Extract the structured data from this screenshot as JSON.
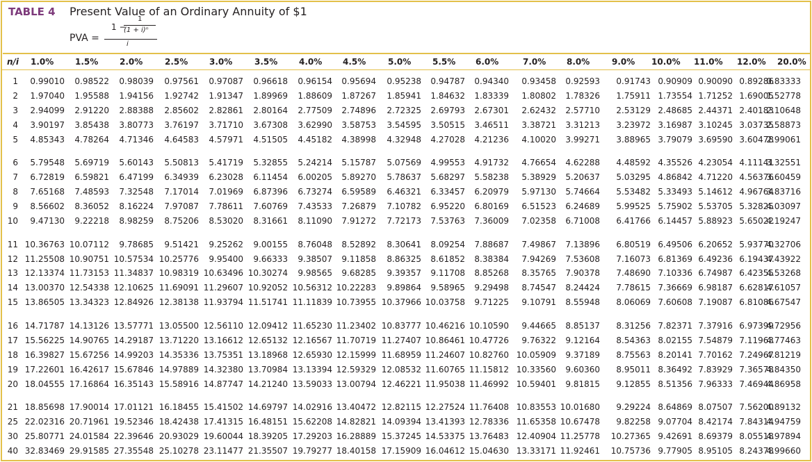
{
  "header": {
    "label": "TABLE 4",
    "title": "Present Value of an Ordinary Annuity of $1",
    "formula": {
      "lhs": "PVA =",
      "prefix": "1 −",
      "inner_numerator": "1",
      "inner_denominator": "(1 + i)ⁿ",
      "denominator": "i"
    }
  },
  "table": {
    "columns": [
      "n/i",
      "1.0%",
      "1.5%",
      "2.0%",
      "2.5%",
      "3.0%",
      "3.5%",
      "4.0%",
      "4.5%",
      "5.0%",
      "5.5%",
      "6.0%",
      "7.0%",
      "8.0%",
      "9.0%",
      "10.0%",
      "11.0%",
      "12.0%",
      "20.0%"
    ],
    "rows": [
      [
        "1",
        "0.99010",
        "0.98522",
        "0.98039",
        "0.97561",
        "0.97087",
        "0.96618",
        "0.96154",
        "0.95694",
        "0.95238",
        "0.94787",
        "0.94340",
        "0.93458",
        "0.92593",
        "0.91743",
        "0.90909",
        "0.90090",
        "0.89286",
        "0.83333"
      ],
      [
        "2",
        "1.97040",
        "1.95588",
        "1.94156",
        "1.92742",
        "1.91347",
        "1.89969",
        "1.88609",
        "1.87267",
        "1.85941",
        "1.84632",
        "1.83339",
        "1.80802",
        "1.78326",
        "1.75911",
        "1.73554",
        "1.71252",
        "1.69005",
        "1.52778"
      ],
      [
        "3",
        "2.94099",
        "2.91220",
        "2.88388",
        "2.85602",
        "2.82861",
        "2.80164",
        "2.77509",
        "2.74896",
        "2.72325",
        "2.69793",
        "2.67301",
        "2.62432",
        "2.57710",
        "2.53129",
        "2.48685",
        "2.44371",
        "2.40183",
        "2.10648"
      ],
      [
        "4",
        "3.90197",
        "3.85438",
        "3.80773",
        "3.76197",
        "3.71710",
        "3.67308",
        "3.62990",
        "3.58753",
        "3.54595",
        "3.50515",
        "3.46511",
        "3.38721",
        "3.31213",
        "3.23972",
        "3.16987",
        "3.10245",
        "3.03735",
        "2.58873"
      ],
      [
        "5",
        "4.85343",
        "4.78264",
        "4.71346",
        "4.64583",
        "4.57971",
        "4.51505",
        "4.45182",
        "4.38998",
        "4.32948",
        "4.27028",
        "4.21236",
        "4.10020",
        "3.99271",
        "3.88965",
        "3.79079",
        "3.69590",
        "3.60478",
        "2.99061"
      ],
      [
        "6",
        "5.79548",
        "5.69719",
        "5.60143",
        "5.50813",
        "5.41719",
        "5.32855",
        "5.24214",
        "5.15787",
        "5.07569",
        "4.99553",
        "4.91732",
        "4.76654",
        "4.62288",
        "4.48592",
        "4.35526",
        "4.23054",
        "4.11141",
        "3.32551"
      ],
      [
        "7",
        "6.72819",
        "6.59821",
        "6.47199",
        "6.34939",
        "6.23028",
        "6.11454",
        "6.00205",
        "5.89270",
        "5.78637",
        "5.68297",
        "5.58238",
        "5.38929",
        "5.20637",
        "5.03295",
        "4.86842",
        "4.71220",
        "4.56376",
        "3.60459"
      ],
      [
        "8",
        "7.65168",
        "7.48593",
        "7.32548",
        "7.17014",
        "7.01969",
        "6.87396",
        "6.73274",
        "6.59589",
        "6.46321",
        "6.33457",
        "6.20979",
        "5.97130",
        "5.74664",
        "5.53482",
        "5.33493",
        "5.14612",
        "4.96764",
        "3.83716"
      ],
      [
        "9",
        "8.56602",
        "8.36052",
        "8.16224",
        "7.97087",
        "7.78611",
        "7.60769",
        "7.43533",
        "7.26879",
        "7.10782",
        "6.95220",
        "6.80169",
        "6.51523",
        "6.24689",
        "5.99525",
        "5.75902",
        "5.53705",
        "5.32825",
        "4.03097"
      ],
      [
        "10",
        "9.47130",
        "9.22218",
        "8.98259",
        "8.75206",
        "8.53020",
        "8.31661",
        "8.11090",
        "7.91272",
        "7.72173",
        "7.53763",
        "7.36009",
        "7.02358",
        "6.71008",
        "6.41766",
        "6.14457",
        "5.88923",
        "5.65022",
        "4.19247"
      ],
      [
        "11",
        "10.36763",
        "10.07112",
        "9.78685",
        "9.51421",
        "9.25262",
        "9.00155",
        "8.76048",
        "8.52892",
        "8.30641",
        "8.09254",
        "7.88687",
        "7.49867",
        "7.13896",
        "6.80519",
        "6.49506",
        "6.20652",
        "5.93770",
        "4.32706"
      ],
      [
        "12",
        "11.25508",
        "10.90751",
        "10.57534",
        "10.25776",
        "9.95400",
        "9.66333",
        "9.38507",
        "9.11858",
        "8.86325",
        "8.61852",
        "8.38384",
        "7.94269",
        "7.53608",
        "7.16073",
        "6.81369",
        "6.49236",
        "6.19437",
        "4.43922"
      ],
      [
        "13",
        "12.13374",
        "11.73153",
        "11.34837",
        "10.98319",
        "10.63496",
        "10.30274",
        "9.98565",
        "9.68285",
        "9.39357",
        "9.11708",
        "8.85268",
        "8.35765",
        "7.90378",
        "7.48690",
        "7.10336",
        "6.74987",
        "6.42355",
        "4.53268"
      ],
      [
        "14",
        "13.00370",
        "12.54338",
        "12.10625",
        "11.69091",
        "11.29607",
        "10.92052",
        "10.56312",
        "10.22283",
        "9.89864",
        "9.58965",
        "9.29498",
        "8.74547",
        "8.24424",
        "7.78615",
        "7.36669",
        "6.98187",
        "6.62817",
        "4.61057"
      ],
      [
        "15",
        "13.86505",
        "13.34323",
        "12.84926",
        "12.38138",
        "11.93794",
        "11.51741",
        "11.11839",
        "10.73955",
        "10.37966",
        "10.03758",
        "9.71225",
        "9.10791",
        "8.55948",
        "8.06069",
        "7.60608",
        "7.19087",
        "6.81086",
        "4.67547"
      ],
      [
        "16",
        "14.71787",
        "14.13126",
        "13.57771",
        "13.05500",
        "12.56110",
        "12.09412",
        "11.65230",
        "11.23402",
        "10.83777",
        "10.46216",
        "10.10590",
        "9.44665",
        "8.85137",
        "8.31256",
        "7.82371",
        "7.37916",
        "6.97399",
        "4.72956"
      ],
      [
        "17",
        "15.56225",
        "14.90765",
        "14.29187",
        "13.71220",
        "13.16612",
        "12.65132",
        "12.16567",
        "11.70719",
        "11.27407",
        "10.86461",
        "10.47726",
        "9.76322",
        "9.12164",
        "8.54363",
        "8.02155",
        "7.54879",
        "7.11963",
        "4.77463"
      ],
      [
        "18",
        "16.39827",
        "15.67256",
        "14.99203",
        "14.35336",
        "13.75351",
        "13.18968",
        "12.65930",
        "12.15999",
        "11.68959",
        "11.24607",
        "10.82760",
        "10.05909",
        "9.37189",
        "8.75563",
        "8.20141",
        "7.70162",
        "7.24967",
        "4.81219"
      ],
      [
        "19",
        "17.22601",
        "16.42617",
        "15.67846",
        "14.97889",
        "14.32380",
        "13.70984",
        "13.13394",
        "12.59329",
        "12.08532",
        "11.60765",
        "11.15812",
        "10.33560",
        "9.60360",
        "8.95011",
        "8.36492",
        "7.83929",
        "7.36578",
        "4.84350"
      ],
      [
        "20",
        "18.04555",
        "17.16864",
        "16.35143",
        "15.58916",
        "14.87747",
        "14.21240",
        "13.59033",
        "13.00794",
        "12.46221",
        "11.95038",
        "11.46992",
        "10.59401",
        "9.81815",
        "9.12855",
        "8.51356",
        "7.96333",
        "7.46944",
        "4.86958"
      ],
      [
        "21",
        "18.85698",
        "17.90014",
        "17.01121",
        "16.18455",
        "15.41502",
        "14.69797",
        "14.02916",
        "13.40472",
        "12.82115",
        "12.27524",
        "11.76408",
        "10.83553",
        "10.01680",
        "9.29224",
        "8.64869",
        "8.07507",
        "7.56200",
        "4.89132"
      ],
      [
        "25",
        "22.02316",
        "20.71961",
        "19.52346",
        "18.42438",
        "17.41315",
        "16.48151",
        "15.62208",
        "14.82821",
        "14.09394",
        "13.41393",
        "12.78336",
        "11.65358",
        "10.67478",
        "9.82258",
        "9.07704",
        "8.42174",
        "7.84314",
        "4.94759"
      ],
      [
        "30",
        "25.80771",
        "24.01584",
        "22.39646",
        "20.93029",
        "19.60044",
        "18.39205",
        "17.29203",
        "16.28889",
        "15.37245",
        "14.53375",
        "13.76483",
        "12.40904",
        "11.25778",
        "10.27365",
        "9.42691",
        "8.69379",
        "8.05518",
        "4.97894"
      ],
      [
        "40",
        "32.83469",
        "29.91585",
        "27.35548",
        "25.10278",
        "23.11477",
        "21.35507",
        "19.79277",
        "18.40158",
        "17.15909",
        "16.04612",
        "15.04630",
        "13.33171",
        "11.92461",
        "10.75736",
        "9.77905",
        "8.95105",
        "8.24378",
        "4.99660"
      ]
    ]
  }
}
